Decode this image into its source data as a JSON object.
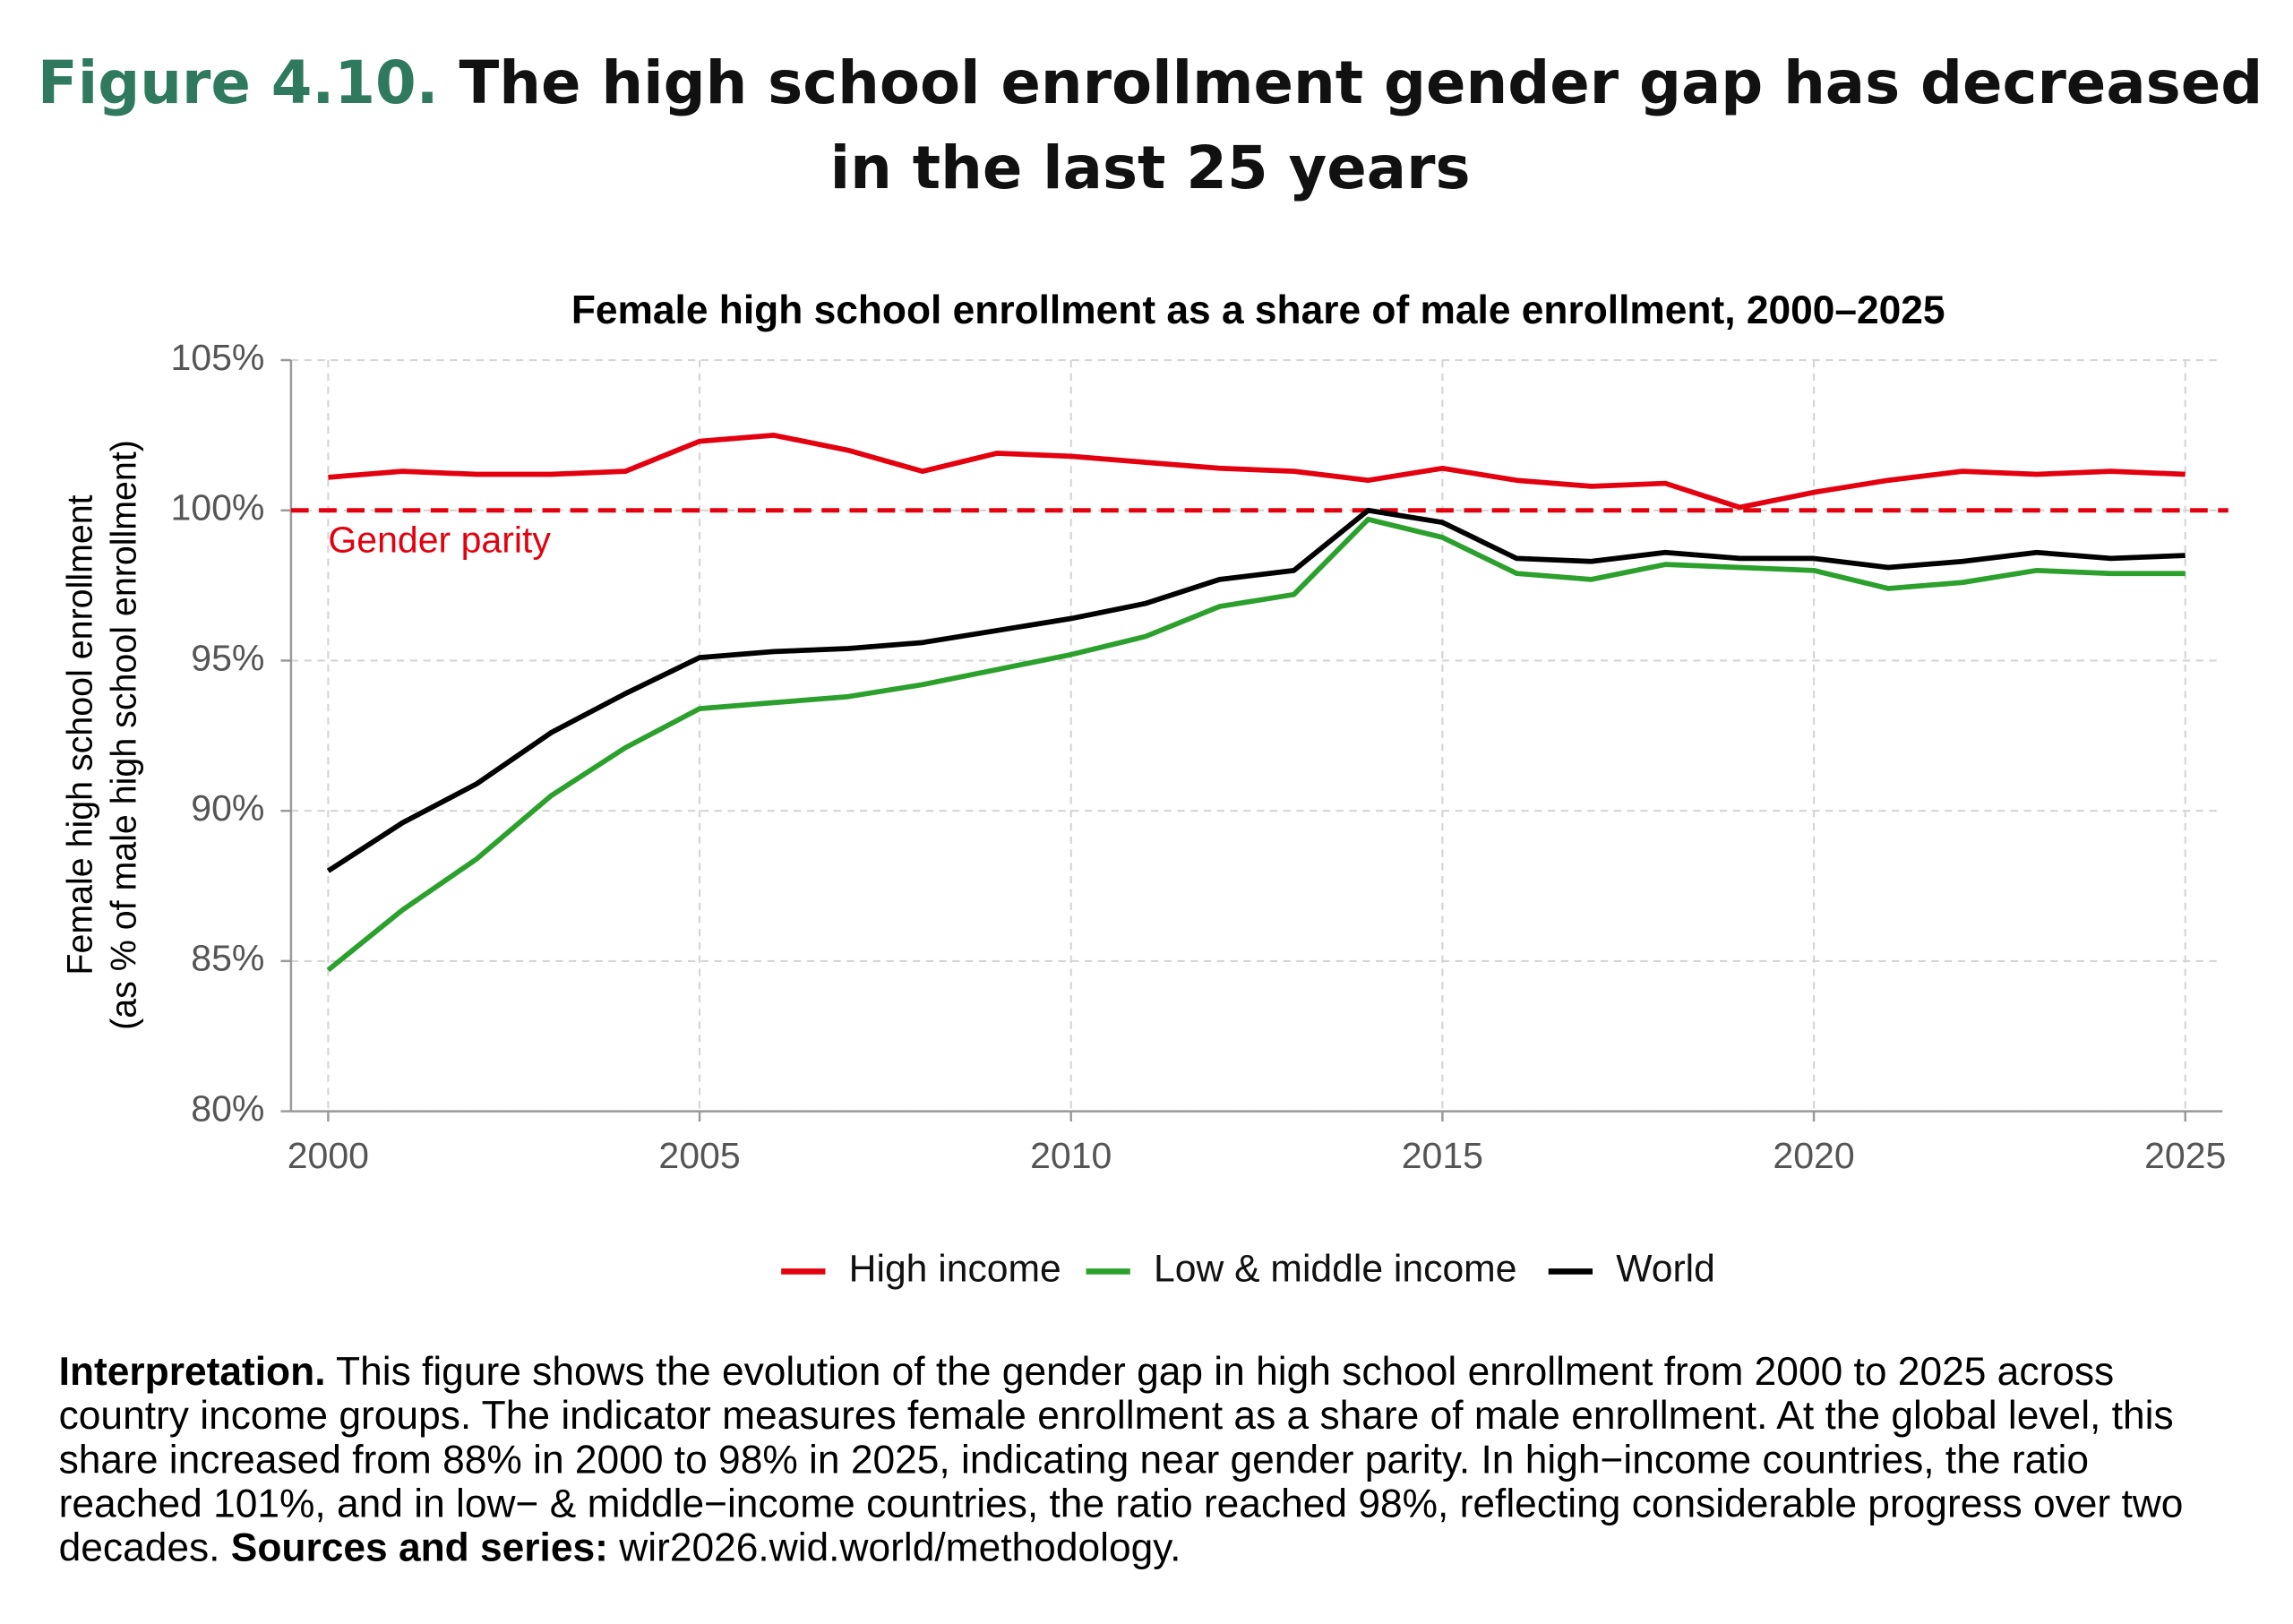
{
  "header": {
    "figure_label": "Figure 4.10.",
    "title": "The high school enrollment gender gap has decreased in the last 25 years"
  },
  "chart_data": {
    "type": "line",
    "title": "Female high school enrollment as a share of male enrollment, 2000–2025",
    "ylabel": [
      "Female high school enrollment",
      "(as % of male high school  enrollment)"
    ],
    "x": [
      2000,
      2001,
      2002,
      2003,
      2004,
      2005,
      2006,
      2007,
      2008,
      2009,
      2010,
      2011,
      2012,
      2013,
      2014,
      2015,
      2016,
      2017,
      2018,
      2019,
      2020,
      2021,
      2022,
      2023,
      2024,
      2025
    ],
    "series": [
      {
        "name": "High income",
        "color": "#e3000f",
        "values": [
          101.1,
          101.3,
          101.2,
          101.2,
          101.3,
          102.3,
          102.5,
          102.0,
          101.3,
          101.9,
          101.8,
          101.6,
          101.4,
          101.3,
          101.0,
          101.4,
          101.0,
          100.8,
          100.9,
          100.1,
          100.6,
          101.0,
          101.3,
          101.2,
          101.3,
          101.2
        ]
      },
      {
        "name": "Low & middle income",
        "color": "#2ca02c",
        "values": [
          84.7,
          86.7,
          88.4,
          90.5,
          92.1,
          93.4,
          93.6,
          93.8,
          94.2,
          94.7,
          95.2,
          95.8,
          96.8,
          97.2,
          99.7,
          99.1,
          97.9,
          97.7,
          98.2,
          98.1,
          98.0,
          97.4,
          97.6,
          98.0,
          97.9,
          97.9
        ]
      },
      {
        "name": "World",
        "color": "#000000",
        "values": [
          88.0,
          89.6,
          90.9,
          92.6,
          93.9,
          95.1,
          95.3,
          95.4,
          95.6,
          96.0,
          96.4,
          96.9,
          97.7,
          98.0,
          100.0,
          99.6,
          98.4,
          98.3,
          98.6,
          98.4,
          98.4,
          98.1,
          98.3,
          98.6,
          98.4,
          98.5
        ]
      }
    ],
    "xlim": [
      1999.5,
      2025.5
    ],
    "xticks": [
      2000,
      2005,
      2010,
      2015,
      2020,
      2025
    ],
    "ylim": [
      80,
      105
    ],
    "yticks": [
      {
        "value": 80,
        "label": "80%"
      },
      {
        "value": 85,
        "label": "85%"
      },
      {
        "value": 90,
        "label": "90%"
      },
      {
        "value": 95,
        "label": "95%"
      },
      {
        "value": 100,
        "label": "100%"
      },
      {
        "value": 105,
        "label": "105%"
      }
    ],
    "reference_line": {
      "value": 100,
      "label": "Gender parity",
      "color": "#e3000f"
    },
    "grid": true,
    "legend": "bottom"
  },
  "note": {
    "label": "Interpretation.",
    "text": " This figure shows the evolution of the gender gap in high school enrollment from 2000 to 2025 across country income groups. The indicator measures female enrollment as a share of male enrollment. At the global level, this share increased from 88% in 2000 to 98% in 2025, indicating near gender parity. In high−income countries, the ratio reached 101%, and in low− & middle−income countries, the ratio reached 98%, reflecting considerable progress over two decades. ",
    "sources_label": "Sources and series:",
    "sources": " wir2026.wid.world/methodology."
  }
}
